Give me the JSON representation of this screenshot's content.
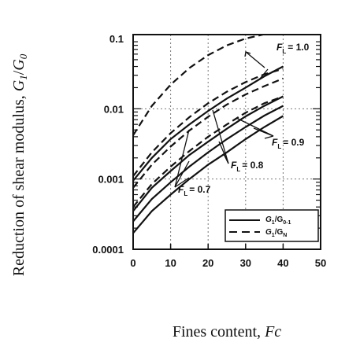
{
  "chart_data": {
    "type": "line",
    "xlabel": "Fines content, Fc",
    "ylabel": "Reduction of shear modulus, G1/G0",
    "xlim": [
      0,
      50
    ],
    "ylim": [
      0.0001,
      0.1
    ],
    "yscale": "log",
    "grid": true,
    "x_ticks": [
      "0",
      "10",
      "20",
      "30",
      "40",
      "50"
    ],
    "y_ticks": [
      "0.0001",
      "0.001",
      "0.01",
      "0.1"
    ],
    "legend": {
      "placement": "lower-right",
      "entries": [
        {
          "label": "G1/G0-1",
          "style": "solid"
        },
        {
          "label": "G1/GN",
          "style": "dashed"
        }
      ]
    },
    "annotations": [
      "FL = 1.0",
      "FL = 0.9",
      "FL = 0.8",
      "FL = 0.7"
    ],
    "x": [
      0,
      5,
      10,
      15,
      20,
      25,
      30,
      35,
      40
    ],
    "series": [
      {
        "style": "solid",
        "group": "FL = 0.7",
        "values": [
          0.00017,
          0.00035,
          0.0006,
          0.001,
          0.0016,
          0.0024,
          0.0037,
          0.0055,
          0.0079
        ]
      },
      {
        "style": "solid",
        "group": "FL = 0.8",
        "values": [
          0.00025,
          0.00052,
          0.0009,
          0.0015,
          0.0024,
          0.0037,
          0.0055,
          0.008,
          0.011
        ]
      },
      {
        "style": "solid",
        "group": "FL = 0.9",
        "values": [
          0.00035,
          0.00075,
          0.0013,
          0.0022,
          0.0034,
          0.0052,
          0.0078,
          0.011,
          0.015
        ]
      },
      {
        "style": "solid",
        "group": "FL = 1.0",
        "values": [
          0.00095,
          0.002,
          0.0037,
          0.006,
          0.0093,
          0.014,
          0.02,
          0.029,
          0.04
        ]
      },
      {
        "style": "dashed",
        "group": "FL = 0.7",
        "values": [
          0.0004,
          0.00085,
          0.0015,
          0.0025,
          0.004,
          0.006,
          0.0088,
          0.012,
          0.015
        ]
      },
      {
        "style": "dashed",
        "group": "FL = 0.8",
        "values": [
          0.00075,
          0.0016,
          0.0029,
          0.0049,
          0.0077,
          0.0115,
          0.016,
          0.021,
          0.027
        ]
      },
      {
        "style": "dashed",
        "group": "FL = 0.9",
        "values": [
          0.0011,
          0.0024,
          0.0045,
          0.0076,
          0.012,
          0.0175,
          0.024,
          0.031,
          0.037
        ]
      },
      {
        "style": "dashed",
        "group": "FL = 1.0",
        "values": [
          0.0042,
          0.011,
          0.022,
          0.038,
          0.058,
          0.08,
          0.1,
          0.115,
          0.125
        ]
      }
    ]
  },
  "text": {
    "ylabel_main": "Reduction of shear modulus, ",
    "ylabel_italic": "G",
    "ylabel_sub1": "1",
    "ylabel_slash": "/",
    "ylabel_italic2": "G",
    "ylabel_sub2": "0",
    "xlabel_main": "Fines content, ",
    "xlabel_italic": "Fc",
    "ann_10_F": "F",
    "ann_10_L": "L",
    "ann_10_val": "= 1.0",
    "ann_09_F": "F",
    "ann_09_L": "L",
    "ann_09_val": "= 0.9",
    "ann_08_F": "F",
    "ann_08_L": "L",
    "ann_08_val": "= 0.8",
    "ann_07_F": "F",
    "ann_07_L": "L",
    "ann_07_val": "= 0.7",
    "leg1_G": "G",
    "leg1_sub1": "1",
    "leg1_mid": "/G",
    "leg1_sub2": "0-1",
    "leg2_G": "G",
    "leg2_sub1": "1",
    "leg2_mid": "/G",
    "leg2_sub2": "N"
  }
}
